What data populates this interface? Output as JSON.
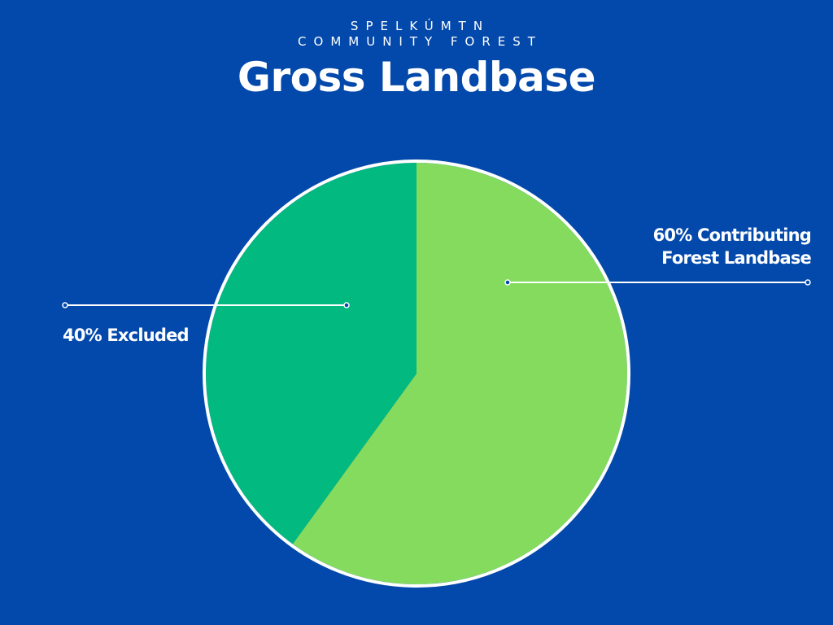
{
  "header": {
    "org_line_1": "SPELKÚMTN",
    "org_line_2": "COMMUNITY FOREST"
  },
  "chart_data": {
    "type": "pie",
    "title": "Gross Landbase",
    "slices": [
      {
        "label_line_1": "60% Contributing",
        "label_line_2": "Forest Landbase",
        "value": 60,
        "color": "#84db5e"
      },
      {
        "label_line_1": "40% Excluded",
        "label_line_2": "",
        "value": 40,
        "color": "#02b97f"
      }
    ],
    "legend": "none",
    "grid": false,
    "colors": {
      "background": "#0349ab",
      "outline": "#ffffff",
      "text": "#ffffff"
    }
  }
}
